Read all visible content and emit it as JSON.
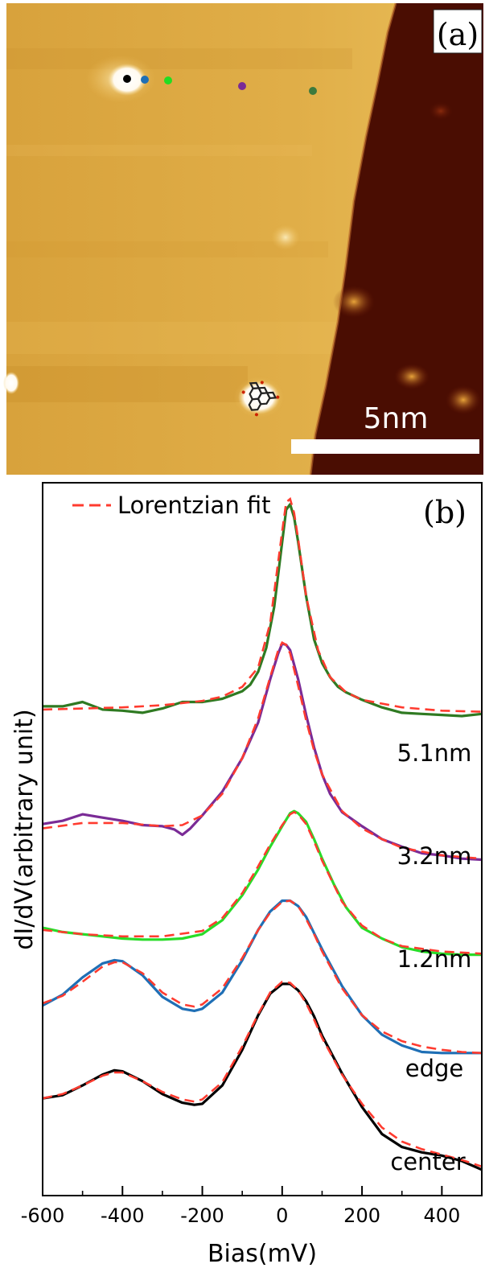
{
  "panel_a": {
    "label": "(a)",
    "scale_bar_label": "5nm",
    "marker_colors": [
      "#000000",
      "#1f6fb5",
      "#22dd22",
      "#7a2b96",
      "#3d7a3d"
    ],
    "colors": {
      "terrace": "#d9a640",
      "terrace_light": "#efc463",
      "substrate": "#4a0d02",
      "bright_spot": "#ffffff"
    }
  },
  "chart_data": {
    "type": "line",
    "label": "(b)",
    "legend": "Lorentzian fit",
    "legend_placement": "top-left",
    "xlabel": "Bias(mV)",
    "ylabel": "dI/dV(arbitrary unit)",
    "xlim": [
      -600,
      500
    ],
    "xticks": [
      -600,
      -400,
      -200,
      0,
      200,
      400
    ],
    "grid": false,
    "fit_color": "#ff3b2f",
    "series": [
      {
        "name": "5.1nm",
        "color": "#2f7a22",
        "x": [
          -600,
          -550,
          -500,
          -450,
          -400,
          -350,
          -300,
          -250,
          -200,
          -150,
          -100,
          -80,
          -60,
          -40,
          -20,
          0,
          10,
          20,
          30,
          40,
          60,
          80,
          100,
          120,
          140,
          160,
          200,
          250,
          300,
          350,
          400,
          450,
          500
        ],
        "y": [
          3.93,
          3.93,
          3.97,
          3.9,
          3.89,
          3.87,
          3.91,
          3.97,
          3.97,
          4.0,
          4.07,
          4.13,
          4.25,
          4.47,
          4.85,
          5.45,
          5.75,
          5.8,
          5.68,
          5.45,
          4.95,
          4.55,
          4.33,
          4.2,
          4.11,
          4.06,
          3.99,
          3.92,
          3.87,
          3.86,
          3.85,
          3.84,
          3.86
        ]
      },
      {
        "name": "3.2nm",
        "color": "#7a2b96",
        "x": [
          -600,
          -550,
          -500,
          -450,
          -400,
          -350,
          -300,
          -270,
          -250,
          -230,
          -200,
          -150,
          -100,
          -60,
          -30,
          -10,
          0,
          10,
          20,
          40,
          60,
          80,
          100,
          120,
          150,
          200,
          250,
          300,
          350,
          400,
          450,
          500
        ],
        "y": [
          2.84,
          2.87,
          2.93,
          2.9,
          2.87,
          2.83,
          2.82,
          2.79,
          2.74,
          2.8,
          2.92,
          3.14,
          3.45,
          3.78,
          4.18,
          4.42,
          4.51,
          4.5,
          4.45,
          4.18,
          3.85,
          3.55,
          3.3,
          3.12,
          2.95,
          2.82,
          2.7,
          2.63,
          2.57,
          2.55,
          2.52,
          2.51
        ]
      },
      {
        "name": "1.2nm",
        "color": "#28dc28",
        "x": [
          -600,
          -550,
          -500,
          -450,
          -400,
          -350,
          -300,
          -250,
          -200,
          -150,
          -100,
          -60,
          -30,
          0,
          20,
          30,
          40,
          60,
          80,
          100,
          130,
          160,
          200,
          250,
          300,
          350,
          400,
          450,
          500
        ],
        "y": [
          1.88,
          1.84,
          1.82,
          1.8,
          1.78,
          1.77,
          1.77,
          1.78,
          1.82,
          1.95,
          2.18,
          2.42,
          2.63,
          2.82,
          2.94,
          2.96,
          2.94,
          2.86,
          2.7,
          2.52,
          2.28,
          2.07,
          1.88,
          1.78,
          1.7,
          1.66,
          1.64,
          1.63,
          1.63
        ]
      },
      {
        "name": "edge",
        "color": "#1f6fb5",
        "x": [
          -600,
          -550,
          -500,
          -450,
          -420,
          -400,
          -350,
          -300,
          -250,
          -220,
          -200,
          -150,
          -100,
          -60,
          -30,
          0,
          20,
          40,
          60,
          80,
          100,
          150,
          200,
          250,
          300,
          350,
          400,
          450,
          500
        ],
        "y": [
          1.16,
          1.26,
          1.42,
          1.55,
          1.58,
          1.57,
          1.44,
          1.24,
          1.13,
          1.11,
          1.13,
          1.28,
          1.58,
          1.86,
          2.03,
          2.13,
          2.13,
          2.08,
          1.98,
          1.83,
          1.68,
          1.34,
          1.07,
          0.89,
          0.79,
          0.73,
          0.72,
          0.72,
          0.72
        ]
      },
      {
        "name": "center",
        "color": "#000000",
        "x": [
          -600,
          -550,
          -500,
          -450,
          -420,
          -400,
          -350,
          -300,
          -250,
          -220,
          -200,
          -150,
          -100,
          -60,
          -30,
          0,
          20,
          40,
          60,
          80,
          100,
          150,
          200,
          250,
          300,
          350,
          400,
          450,
          500
        ],
        "y": [
          0.3,
          0.33,
          0.42,
          0.52,
          0.56,
          0.55,
          0.46,
          0.34,
          0.26,
          0.24,
          0.25,
          0.42,
          0.75,
          1.07,
          1.27,
          1.36,
          1.36,
          1.3,
          1.2,
          1.06,
          0.88,
          0.53,
          0.22,
          -0.03,
          -0.15,
          -0.2,
          -0.23,
          -0.28,
          -0.36
        ]
      }
    ],
    "fits": [
      {
        "name": "5.1nm",
        "x": [
          -600,
          -500,
          -400,
          -300,
          -200,
          -150,
          -100,
          -60,
          -30,
          0,
          10,
          20,
          30,
          40,
          60,
          90,
          120,
          160,
          200,
          300,
          400,
          500
        ],
        "y": [
          3.9,
          3.91,
          3.92,
          3.94,
          3.98,
          4.02,
          4.11,
          4.29,
          4.7,
          5.55,
          5.82,
          5.85,
          5.72,
          5.48,
          4.95,
          4.45,
          4.2,
          4.06,
          3.99,
          3.92,
          3.89,
          3.88
        ]
      },
      {
        "name": "3.2nm",
        "x": [
          -600,
          -500,
          -400,
          -300,
          -250,
          -200,
          -150,
          -100,
          -60,
          -30,
          -10,
          0,
          10,
          20,
          40,
          60,
          80,
          100,
          150,
          200,
          250,
          300,
          400,
          500
        ],
        "y": [
          2.8,
          2.85,
          2.85,
          2.82,
          2.83,
          2.92,
          3.12,
          3.45,
          3.82,
          4.2,
          4.45,
          4.52,
          4.5,
          4.42,
          4.12,
          3.8,
          3.52,
          3.3,
          2.96,
          2.8,
          2.7,
          2.62,
          2.55,
          2.52
        ]
      },
      {
        "name": "1.2nm",
        "x": [
          -600,
          -500,
          -400,
          -300,
          -200,
          -150,
          -100,
          -60,
          -30,
          0,
          20,
          30,
          40,
          60,
          80,
          100,
          150,
          200,
          250,
          300,
          400,
          500
        ],
        "y": [
          1.86,
          1.82,
          1.8,
          1.8,
          1.85,
          1.97,
          2.2,
          2.45,
          2.65,
          2.83,
          2.93,
          2.95,
          2.93,
          2.84,
          2.68,
          2.5,
          2.12,
          1.9,
          1.78,
          1.71,
          1.66,
          1.64
        ]
      },
      {
        "name": "edge",
        "x": [
          -600,
          -550,
          -500,
          -450,
          -420,
          -400,
          -350,
          -300,
          -250,
          -220,
          -200,
          -150,
          -100,
          -60,
          -30,
          0,
          20,
          40,
          60,
          80,
          100,
          150,
          200,
          250,
          300,
          350,
          400,
          450,
          500
        ],
        "y": [
          1.18,
          1.25,
          1.38,
          1.52,
          1.56,
          1.56,
          1.46,
          1.28,
          1.17,
          1.15,
          1.17,
          1.32,
          1.6,
          1.86,
          2.02,
          2.12,
          2.13,
          2.08,
          1.96,
          1.82,
          1.66,
          1.32,
          1.07,
          0.92,
          0.83,
          0.78,
          0.75,
          0.73,
          0.72
        ]
      },
      {
        "name": "center",
        "x": [
          -600,
          -550,
          -500,
          -450,
          -420,
          -400,
          -350,
          -300,
          -250,
          -220,
          -200,
          -150,
          -100,
          -60,
          -30,
          0,
          20,
          40,
          60,
          80,
          100,
          150,
          200,
          250,
          300,
          350,
          400,
          450,
          500
        ],
        "y": [
          0.3,
          0.34,
          0.42,
          0.51,
          0.54,
          0.54,
          0.46,
          0.36,
          0.29,
          0.27,
          0.29,
          0.45,
          0.78,
          1.08,
          1.28,
          1.38,
          1.37,
          1.3,
          1.18,
          1.03,
          0.86,
          0.52,
          0.25,
          0.03,
          -0.1,
          -0.17,
          -0.22,
          -0.27,
          -0.33
        ]
      }
    ]
  }
}
